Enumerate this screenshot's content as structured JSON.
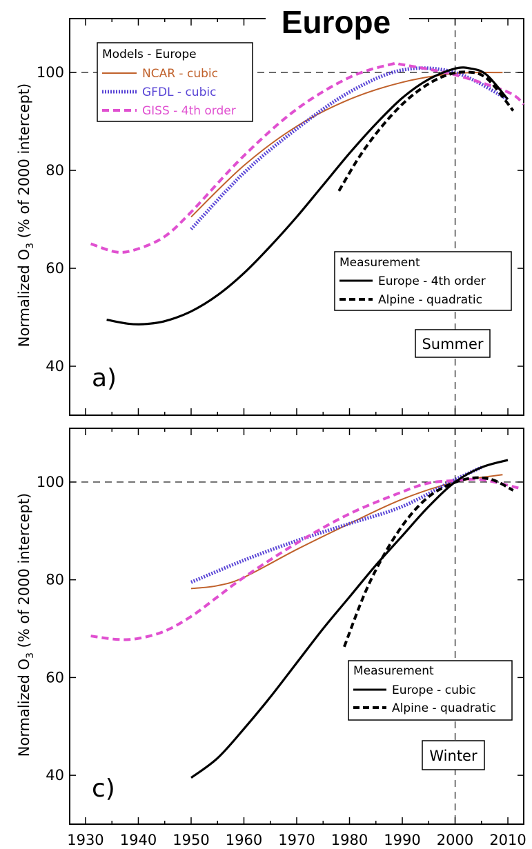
{
  "title": "Europe",
  "colors": {
    "NCAR": "#c0612b",
    "GFDL": "#5a46d6",
    "GISS": "#e050d0",
    "measurement": "#000000"
  },
  "chart_data": [
    {
      "type": "line",
      "panel_label": "a)",
      "season": "Summer",
      "ylabel_main": "Normalized O",
      "ylabel_sub": "3",
      "ylabel_tail": " (% of 2000 intercept)",
      "xlim": [
        1927,
        2013
      ],
      "ylim": [
        30,
        111
      ],
      "y_ticks": [
        40,
        60,
        80,
        100
      ],
      "x_ticks": [
        1930,
        1940,
        1950,
        1960,
        1970,
        1980,
        1990,
        2000,
        2010
      ],
      "reference_lines": {
        "y": 100,
        "x": 2000
      },
      "legend_models": {
        "title": "Models - Europe",
        "entries": [
          "NCAR - cubic",
          "GFDL - cubic",
          "GISS - 4th order"
        ]
      },
      "legend_measurement": {
        "title": "Measurement",
        "entries": [
          "Europe - 4th order",
          "Alpine - quadratic"
        ]
      },
      "series": [
        {
          "name": "NCAR - cubic",
          "color": "#c0612b",
          "style": "solid-thin",
          "x": [
            1950,
            1960,
            1970,
            1980,
            1990,
            2000,
            2009
          ],
          "y": [
            70.5,
            81,
            89,
            94.5,
            98,
            99.8,
            100
          ]
        },
        {
          "name": "GFDL - cubic",
          "color": "#5a46d6",
          "style": "dotted",
          "x": [
            1950,
            1960,
            1970,
            1980,
            1990,
            2000,
            2010
          ],
          "y": [
            68,
            79.5,
            88.5,
            96,
            100.5,
            100,
            94.5
          ]
        },
        {
          "name": "GISS - 4th order",
          "color": "#e050d0",
          "style": "dashed",
          "x": [
            1931,
            1936,
            1940,
            1945,
            1950,
            1960,
            1970,
            1980,
            1988,
            1990,
            2000,
            2010,
            2013
          ],
          "y": [
            65,
            63.3,
            64,
            66.5,
            71.5,
            83,
            92.5,
            99,
            101.7,
            101.6,
            99.5,
            96,
            93.5
          ]
        },
        {
          "name": "Europe - 4th order",
          "color": "#000000",
          "style": "solid-thick",
          "x": [
            1934,
            1938,
            1941,
            1945,
            1950,
            1955,
            1960,
            1965,
            1970,
            1975,
            1980,
            1985,
            1990,
            1995,
            2000,
            2003,
            2006,
            2010
          ],
          "y": [
            49.5,
            48.7,
            48.6,
            49.2,
            51.2,
            54.5,
            59,
            64.5,
            70.5,
            77,
            83.5,
            89.5,
            94.8,
            98.6,
            100.8,
            100.8,
            99.5,
            94.5
          ]
        },
        {
          "name": "Alpine - quadratic",
          "color": "#000000",
          "style": "dashed-thick",
          "x": [
            1978,
            1982,
            1986,
            1990,
            1994,
            1998,
            2002,
            2006,
            2011
          ],
          "y": [
            75.8,
            83,
            88.8,
            93.5,
            97,
            99.3,
            100.1,
            98.8,
            92.2
          ]
        }
      ]
    },
    {
      "type": "line",
      "panel_label": "c)",
      "season": "Winter",
      "ylabel_main": "Normalized O",
      "ylabel_sub": "3",
      "ylabel_tail": " (% of 2000 intercept)",
      "xlim": [
        1927,
        2013
      ],
      "ylim": [
        30,
        111
      ],
      "y_ticks": [
        40,
        60,
        80,
        100
      ],
      "x_ticks": [
        1930,
        1940,
        1950,
        1960,
        1970,
        1980,
        1990,
        2000,
        2010
      ],
      "x_tick_labels": [
        "1930",
        "1940",
        "1950",
        "1960",
        "1970",
        "1980",
        "1990",
        "2000",
        "2010"
      ],
      "reference_lines": {
        "y": 100,
        "x": 2000
      },
      "legend_measurement": {
        "title": "Measurement",
        "entries": [
          "Europe - cubic",
          "Alpine - quadratic"
        ]
      },
      "series": [
        {
          "name": "NCAR - cubic",
          "color": "#c0612b",
          "style": "solid-thin",
          "x": [
            1950,
            1955,
            1960,
            1970,
            1980,
            1990,
            2000,
            2009
          ],
          "y": [
            78.2,
            78.8,
            80.5,
            86.2,
            91.5,
            96.5,
            100,
            101.5
          ]
        },
        {
          "name": "GFDL - cubic",
          "color": "#5a46d6",
          "style": "dotted",
          "x": [
            1950,
            1960,
            1970,
            1980,
            1990,
            2000,
            2005
          ],
          "y": [
            79.5,
            84,
            88,
            91.5,
            95,
            100.5,
            103
          ]
        },
        {
          "name": "GISS - 4th order",
          "color": "#e050d0",
          "style": "dashed",
          "x": [
            1931,
            1936,
            1940,
            1945,
            1950,
            1955,
            1960,
            1970,
            1980,
            1990,
            1995,
            2000,
            2005,
            2012
          ],
          "y": [
            68.5,
            67.8,
            68,
            69.5,
            72.5,
            76.5,
            80.5,
            87.5,
            93.5,
            98,
            99.8,
            100.3,
            100.5,
            98.8
          ]
        },
        {
          "name": "Europe - cubic",
          "color": "#000000",
          "style": "solid-thick",
          "x": [
            1950,
            1955,
            1960,
            1965,
            1970,
            1975,
            1980,
            1985,
            1990,
            1995,
            2000,
            2005,
            2010
          ],
          "y": [
            39.5,
            43.5,
            49.5,
            56,
            63,
            70,
            76.5,
            83,
            89,
            95,
            100,
            103,
            104.5
          ]
        },
        {
          "name": "Alpine - quadratic",
          "color": "#000000",
          "style": "dashed-thick",
          "x": [
            1979,
            1983,
            1987,
            1991,
            1995,
            1999,
            2003,
            2007,
            2011
          ],
          "y": [
            66.3,
            77.5,
            86,
            92.5,
            97,
            99.5,
            100.8,
            100.5,
            98.3
          ]
        }
      ]
    }
  ]
}
